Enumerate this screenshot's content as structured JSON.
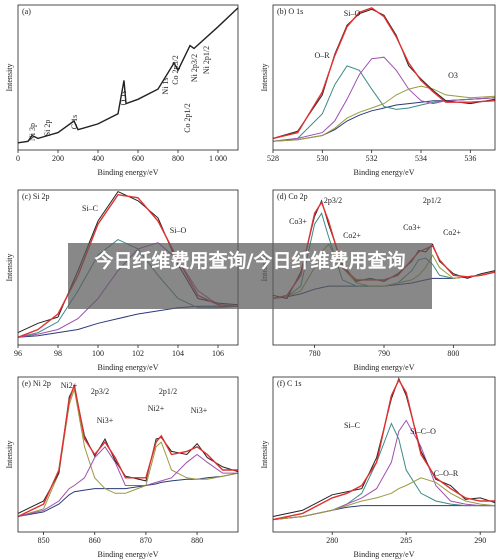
{
  "chart_data": [
    {
      "type": "line",
      "title": "(a)",
      "xlabel": "Binding energy/eV",
      "ylabel": "Intensity",
      "xlim": [
        0,
        1100
      ],
      "ylim": [
        0,
        100
      ],
      "xticks": [
        0,
        200,
        400,
        600,
        800,
        {
          "value": 1000,
          "label": "1 000"
        }
      ],
      "annotations": [
        "Ni 3p",
        "Si 2p",
        "C 1s",
        "O 1s",
        "Ni 1s",
        "Co 2p3/2",
        "Co 2p1/2",
        "Ni 2p3/2",
        "Ni 2p1/2"
      ],
      "x": [
        0,
        50,
        70,
        100,
        150,
        200,
        280,
        300,
        400,
        500,
        530,
        540,
        600,
        700,
        780,
        800,
        860,
        880,
        1000,
        1100
      ],
      "series": [
        {
          "color": "#222222",
          "values": [
            5,
            6,
            10,
            8,
            10,
            12,
            20,
            14,
            18,
            25,
            48,
            32,
            35,
            42,
            60,
            55,
            72,
            70,
            85,
            98
          ]
        }
      ]
    },
    {
      "type": "line",
      "title": "(b) O 1s",
      "xlabel": "Binding energy/eV",
      "ylabel": "Intensity",
      "xlim": [
        528,
        537
      ],
      "ylim": [
        0,
        100
      ],
      "xticks": [
        528,
        530,
        532,
        534,
        536
      ],
      "annotations": [
        "Si–O",
        "O–R",
        "O3"
      ],
      "x": [
        528,
        529,
        530,
        530.5,
        531,
        531.5,
        532,
        532.5,
        533,
        533.5,
        534,
        534.5,
        535,
        536,
        537
      ],
      "series": [
        {
          "color": "#2a3a7a",
          "values": [
            6,
            7,
            10,
            14,
            20,
            24,
            27,
            29,
            31,
            32,
            33,
            34,
            34,
            35,
            36
          ]
        },
        {
          "color": "#3d8a85",
          "values": [
            6,
            8,
            25,
            45,
            58,
            55,
            42,
            30,
            28,
            29,
            31,
            33,
            34,
            35,
            36
          ]
        },
        {
          "color": "#a050b0",
          "values": [
            6,
            8,
            12,
            20,
            35,
            52,
            63,
            64,
            55,
            42,
            34,
            32,
            34,
            35,
            36
          ]
        },
        {
          "color": "#9a9a40",
          "values": [
            6,
            7,
            10,
            15,
            22,
            26,
            29,
            32,
            38,
            42,
            44,
            42,
            38,
            36,
            37
          ]
        },
        {
          "color": "#222222",
          "values": [
            8,
            13,
            38,
            66,
            86,
            94,
            97,
            93,
            79,
            58,
            49,
            41,
            34,
            32,
            35
          ]
        },
        {
          "color": "#e03030",
          "values": [
            8,
            12,
            40,
            65,
            85,
            95,
            98,
            92,
            78,
            60,
            48,
            40,
            33,
            33,
            34
          ]
        }
      ]
    },
    {
      "type": "line",
      "title": "(c) Si 2p",
      "xlabel": "Binding energy/eV",
      "ylabel": "Intensity",
      "xlim": [
        96,
        107
      ],
      "ylim": [
        0,
        100
      ],
      "xticks": [
        96,
        98,
        100,
        102,
        104,
        106
      ],
      "annotations": [
        "Si–C",
        "Si–O"
      ],
      "x": [
        96,
        97,
        98,
        99,
        100,
        101,
        102,
        103,
        104,
        105,
        106,
        107
      ],
      "series": [
        {
          "color": "#2a3a7a",
          "values": [
            5,
            6,
            8,
            10,
            14,
            17,
            20,
            22,
            24,
            25,
            25,
            25
          ]
        },
        {
          "color": "#3d8a85",
          "values": [
            5,
            8,
            15,
            35,
            58,
            68,
            62,
            45,
            30,
            24,
            24,
            25
          ]
        },
        {
          "color": "#a050b0",
          "values": [
            5,
            7,
            10,
            17,
            30,
            48,
            62,
            66,
            55,
            35,
            26,
            25
          ]
        },
        {
          "color": "#222222",
          "values": [
            8,
            14,
            18,
            48,
            80,
            99,
            93,
            82,
            52,
            30,
            27,
            26
          ]
        },
        {
          "color": "#e03030",
          "values": [
            5,
            10,
            20,
            45,
            78,
            97,
            95,
            80,
            55,
            32,
            26,
            25
          ]
        }
      ]
    },
    {
      "type": "line",
      "title": "(d) Co 2p",
      "xlabel": "Binding energy/eV",
      "ylabel": "Intensity",
      "xlim": [
        774,
        806
      ],
      "ylim": [
        0,
        100
      ],
      "xticks": [
        780,
        790,
        800
      ],
      "annotations": [
        "Co3+",
        "2p3/2",
        "Co2+",
        "Co3+",
        "2p1/2",
        "Co2+"
      ],
      "x": [
        774,
        776,
        778,
        780,
        781,
        782,
        784,
        786,
        788,
        790,
        792,
        794,
        795,
        796,
        797,
        798,
        800,
        802,
        804,
        806
      ],
      "series": [
        {
          "color": "#2a3a7a",
          "values": [
            30,
            31,
            33,
            36,
            37,
            38,
            38,
            38,
            38,
            38,
            39,
            40,
            41,
            42,
            43,
            43,
            43,
            44,
            45,
            47
          ]
        },
        {
          "color": "#3d8a85",
          "values": [
            30,
            31,
            38,
            78,
            85,
            70,
            42,
            38,
            38,
            38,
            40,
            48,
            55,
            56,
            52,
            45,
            43,
            44,
            45,
            47
          ]
        },
        {
          "color": "#9a9a40",
          "values": [
            30,
            31,
            35,
            50,
            60,
            65,
            50,
            40,
            38,
            38,
            40,
            42,
            45,
            50,
            58,
            50,
            43,
            44,
            45,
            47
          ]
        },
        {
          "color": "#222222",
          "values": [
            32,
            30,
            47,
            83,
            93,
            78,
            52,
            41,
            43,
            41,
            46,
            54,
            61,
            60,
            65,
            54,
            46,
            43,
            46,
            48
          ]
        },
        {
          "color": "#e03030",
          "values": [
            30,
            32,
            45,
            85,
            92,
            80,
            50,
            42,
            42,
            42,
            45,
            55,
            60,
            62,
            64,
            55,
            45,
            44,
            45,
            47
          ]
        }
      ]
    },
    {
      "type": "line",
      "title": "(e) Ni 2p",
      "xlabel": "Binding energy/eV",
      "ylabel": "Intensity",
      "xlim": [
        845,
        888
      ],
      "ylim": [
        0,
        100
      ],
      "xticks": [
        850,
        860,
        870,
        880
      ],
      "annotations": [
        "Ni2+",
        "2p3/2",
        "Ni3+",
        "2p1/2",
        "Ni2+",
        "Ni3+"
      ],
      "x": [
        845,
        850,
        853,
        855,
        856,
        858,
        860,
        862,
        864,
        866,
        870,
        872,
        873,
        875,
        878,
        880,
        882,
        885,
        888
      ],
      "series": [
        {
          "color": "#2a3a7a",
          "values": [
            10,
            13,
            18,
            24,
            26,
            27,
            28,
            28,
            28,
            28,
            30,
            31,
            32,
            33,
            34,
            34,
            35,
            36,
            38
          ]
        },
        {
          "color": "#9a9a40",
          "values": [
            10,
            15,
            38,
            82,
            92,
            55,
            35,
            28,
            25,
            25,
            30,
            55,
            58,
            40,
            35,
            34,
            34,
            36,
            38
          ]
        },
        {
          "color": "#a050b0",
          "values": [
            10,
            14,
            20,
            28,
            30,
            35,
            48,
            55,
            45,
            30,
            30,
            32,
            33,
            35,
            45,
            50,
            45,
            38,
            38
          ]
        },
        {
          "color": "#222222",
          "values": [
            12,
            20,
            38,
            87,
            94,
            62,
            49,
            60,
            46,
            36,
            33,
            60,
            61,
            52,
            50,
            57,
            48,
            42,
            39
          ]
        },
        {
          "color": "#e03030",
          "values": [
            10,
            18,
            40,
            85,
            95,
            60,
            50,
            58,
            48,
            35,
            35,
            58,
            62,
            50,
            52,
            55,
            50,
            40,
            40
          ]
        }
      ]
    },
    {
      "type": "line",
      "title": "(f) C 1s",
      "xlabel": "Binding energy/eV",
      "ylabel": "Intensity",
      "xlim": [
        276,
        291
      ],
      "ylim": [
        0,
        100
      ],
      "xticks": [
        280,
        285,
        290
      ],
      "annotations": [
        "Si–C",
        "Si–C–O",
        "C–O–R"
      ],
      "x": [
        276,
        278,
        280,
        281,
        282,
        283,
        284,
        284.5,
        285,
        286,
        287,
        288,
        289,
        290,
        291
      ],
      "series": [
        {
          "color": "#2a3a7a",
          "values": [
            8,
            10,
            14,
            16,
            17,
            17,
            17,
            17,
            17,
            17,
            17,
            17,
            17,
            17,
            17
          ]
        },
        {
          "color": "#3d8a85",
          "values": [
            8,
            10,
            14,
            18,
            25,
            45,
            70,
            60,
            40,
            25,
            20,
            18,
            17,
            17,
            17
          ]
        },
        {
          "color": "#a050b0",
          "values": [
            8,
            10,
            14,
            18,
            22,
            28,
            45,
            65,
            72,
            55,
            30,
            20,
            18,
            17,
            17
          ]
        },
        {
          "color": "#9a9a40",
          "values": [
            8,
            10,
            14,
            17,
            20,
            22,
            25,
            28,
            30,
            35,
            32,
            25,
            20,
            18,
            17
          ]
        },
        {
          "color": "#222222",
          "values": [
            10,
            14,
            24,
            26,
            28,
            48,
            86,
            99,
            88,
            52,
            34,
            30,
            21,
            22,
            19
          ]
        },
        {
          "color": "#e03030",
          "values": [
            8,
            12,
            22,
            25,
            30,
            45,
            88,
            98,
            90,
            50,
            35,
            28,
            22,
            20,
            20
          ]
        }
      ]
    }
  ],
  "banner": {
    "text": "今日纤维费用查询/今日纤维费用查询"
  }
}
